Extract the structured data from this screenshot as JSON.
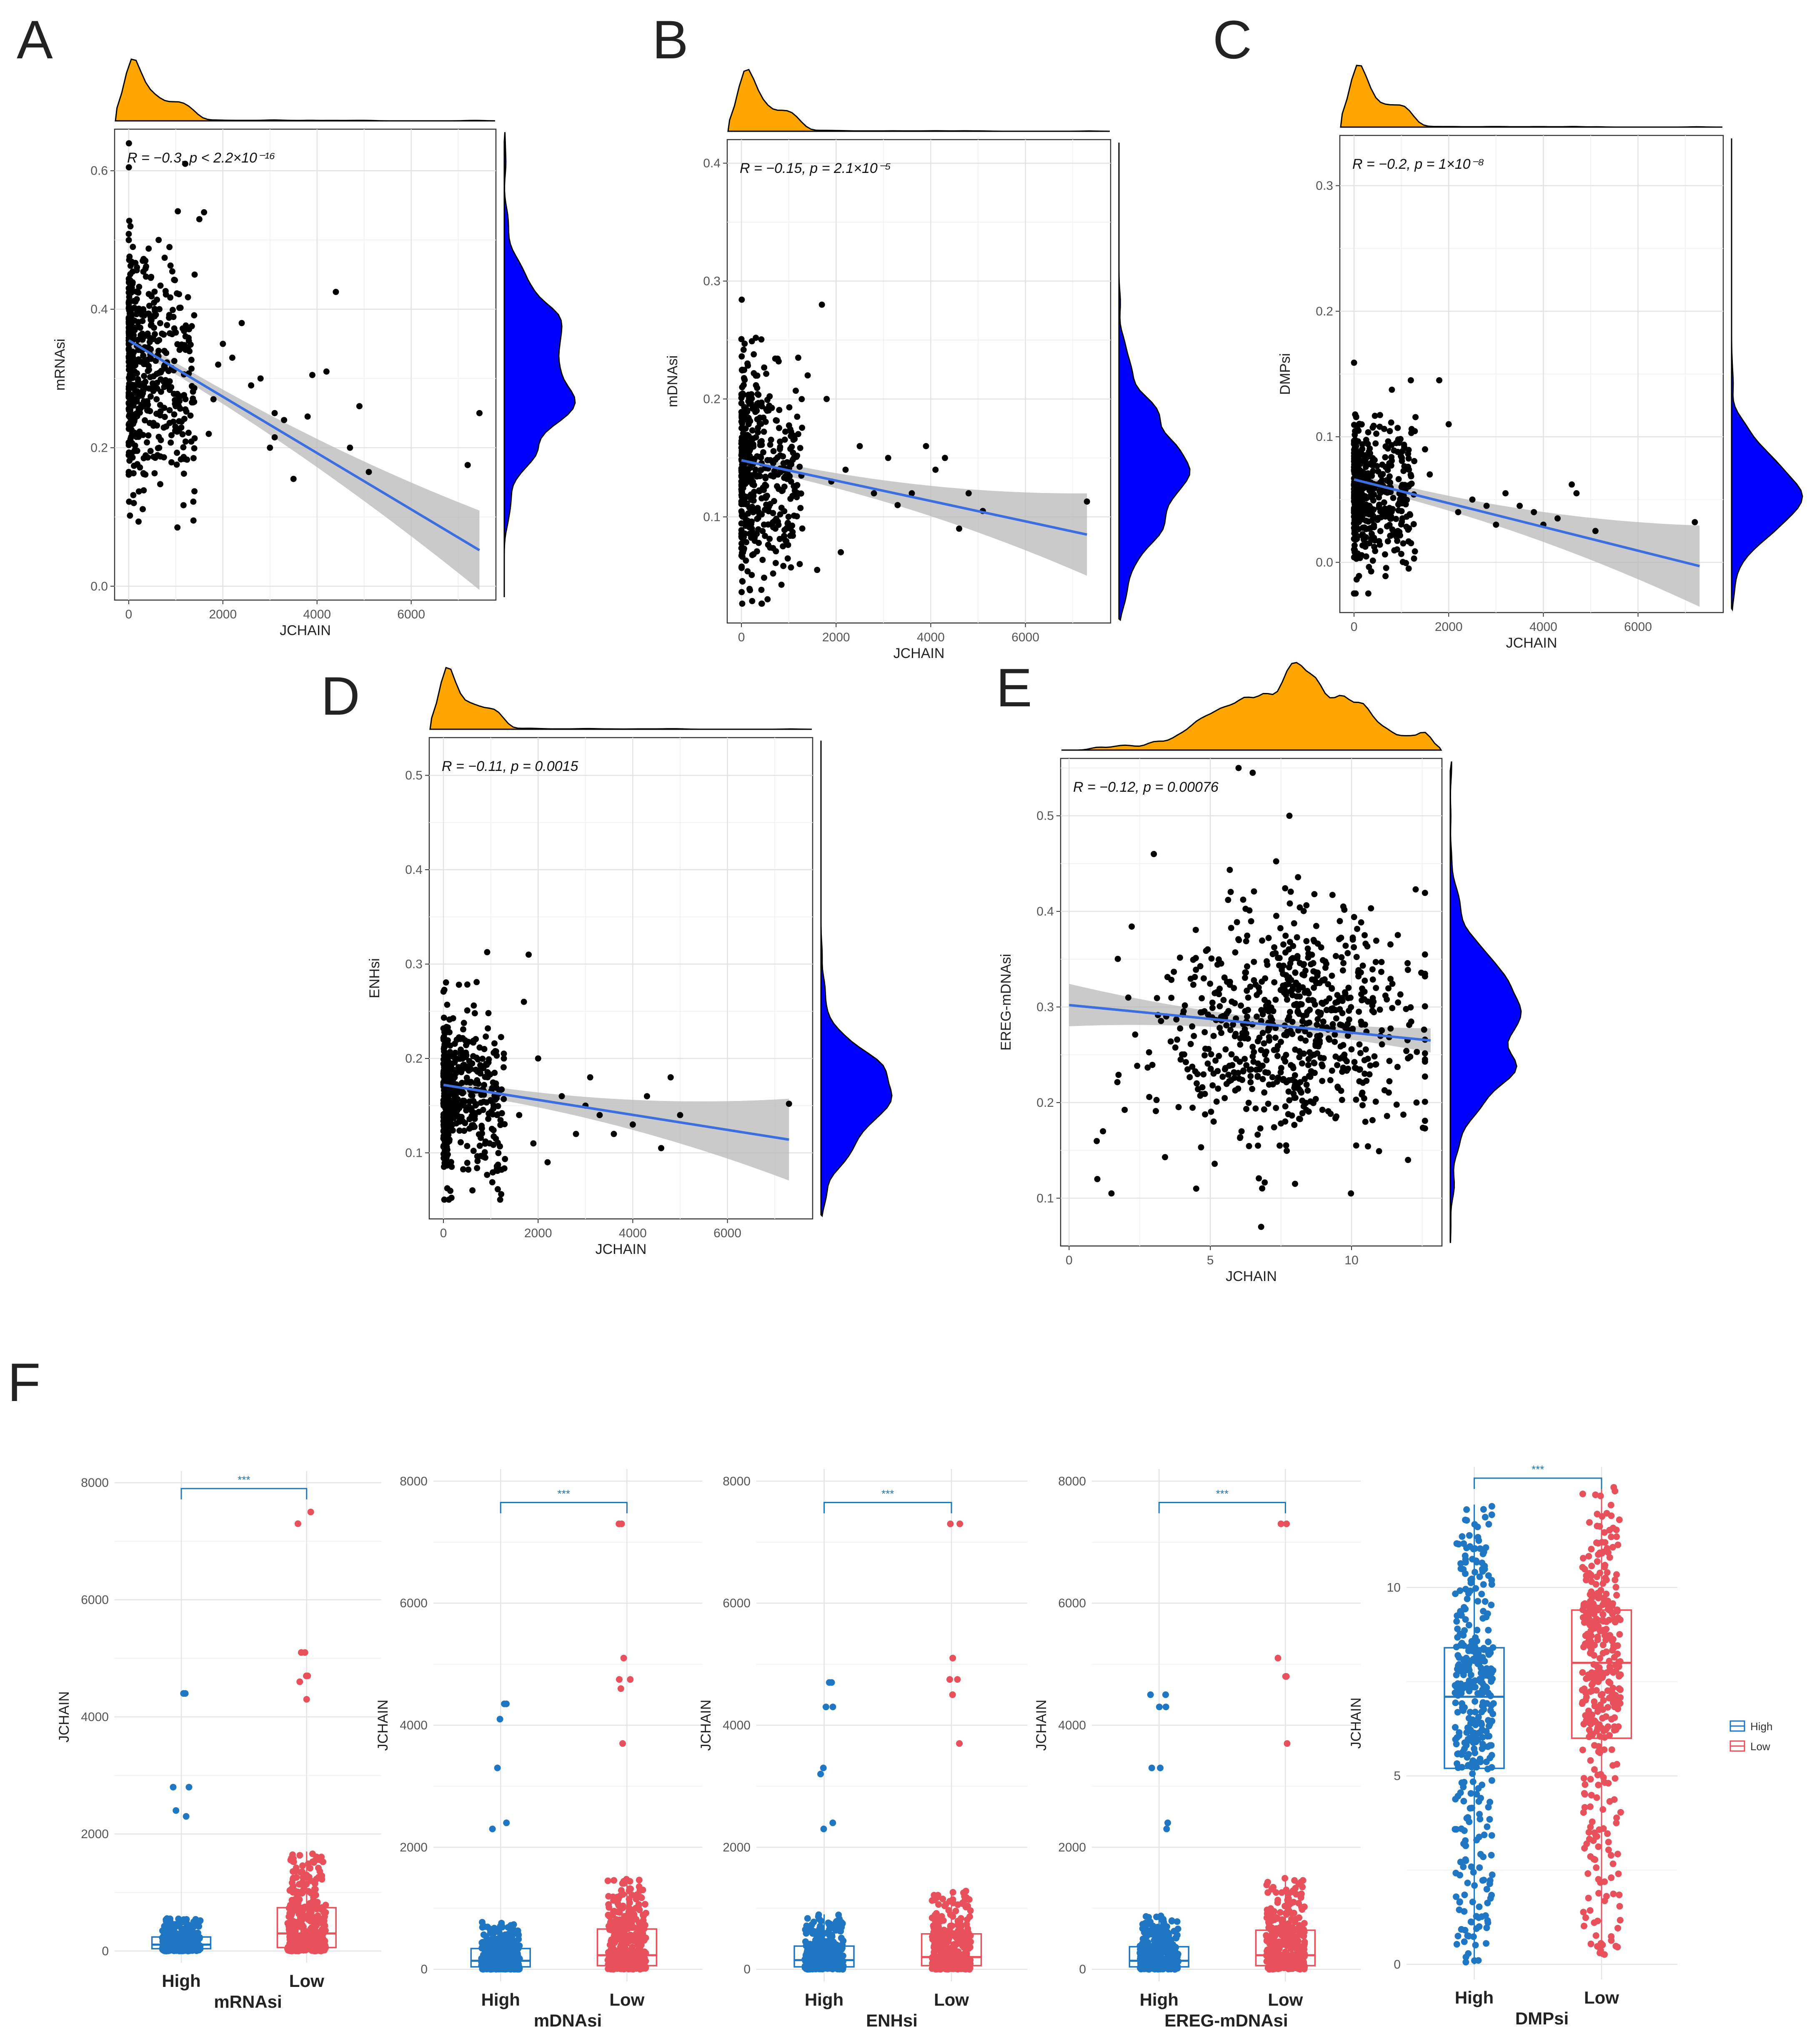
{
  "chart_data": [
    {
      "id": "A",
      "type": "scatter",
      "panel_letter": "A",
      "xlabel": "JCHAIN",
      "ylabel": "mRNAsi",
      "xlim": [
        -300,
        7800
      ],
      "ylim": [
        -0.02,
        0.66
      ],
      "xticks": [
        0,
        2000,
        4000,
        6000
      ],
      "yticks": [
        0.0,
        0.2,
        0.4,
        0.6
      ],
      "xtick_labels": [
        "0",
        "2000",
        "4000",
        "6000"
      ],
      "ytick_labels": [
        "0.0",
        "0.2",
        "0.4",
        "0.6"
      ],
      "annotation": "R = −0.3, p < 2.2×10⁻¹⁶",
      "fit": {
        "x": [
          0,
          7450
        ],
        "y": [
          0.355,
          0.052
        ]
      },
      "cloud": {
        "n": 520,
        "xmax": 1400,
        "ymean": 0.33,
        "ysd": 0.09,
        "slope": -4e-05,
        "seed": 11
      },
      "points_x": [
        4400,
        4200,
        3900,
        3800,
        3500,
        3300,
        3100,
        3100,
        3000,
        2800,
        2600,
        2400,
        2200,
        2000,
        1900,
        1800,
        1700,
        1600,
        4700,
        4900,
        5100,
        7200,
        7450,
        1500,
        1200,
        1400
      ],
      "points_y": [
        0.425,
        0.31,
        0.305,
        0.245,
        0.155,
        0.24,
        0.215,
        0.25,
        0.2,
        0.3,
        0.29,
        0.38,
        0.33,
        0.35,
        0.32,
        0.27,
        0.22,
        0.54,
        0.2,
        0.26,
        0.165,
        0.175,
        0.25,
        0.53,
        0.61,
        0.45
      ]
    },
    {
      "id": "B",
      "type": "scatter",
      "panel_letter": "B",
      "xlabel": "JCHAIN",
      "ylabel": "mDNAsi",
      "xlim": [
        -300,
        7800
      ],
      "ylim": [
        0.01,
        0.42
      ],
      "xticks": [
        0,
        2000,
        4000,
        6000
      ],
      "yticks": [
        0.1,
        0.2,
        0.3,
        0.4
      ],
      "xtick_labels": [
        "0",
        "2000",
        "4000",
        "6000"
      ],
      "ytick_labels": [
        "0.1",
        "0.2",
        "0.3",
        "0.4"
      ],
      "annotation": "R = −0.15, p = 2.1×10⁻⁵",
      "fit": {
        "x": [
          0,
          7300
        ],
        "y": [
          0.148,
          0.085
        ]
      },
      "cloud": {
        "n": 460,
        "xmax": 1300,
        "ymean": 0.14,
        "ysd": 0.045,
        "slope": -1e-05,
        "seed": 22
      },
      "points_x": [
        4300,
        4100,
        3900,
        3600,
        3300,
        3100,
        2800,
        2500,
        2200,
        1900,
        1700,
        1600,
        4600,
        4800,
        5100,
        7300,
        1200,
        1400,
        1800,
        2100
      ],
      "points_y": [
        0.15,
        0.14,
        0.16,
        0.12,
        0.11,
        0.15,
        0.12,
        0.16,
        0.14,
        0.13,
        0.28,
        0.055,
        0.09,
        0.12,
        0.105,
        0.113,
        0.235,
        0.22,
        0.2,
        0.07
      ]
    },
    {
      "id": "C",
      "type": "scatter",
      "panel_letter": "C",
      "xlabel": "JCHAIN",
      "ylabel": "DMPsi",
      "xlim": [
        -300,
        7800
      ],
      "ylim": [
        -0.04,
        0.34
      ],
      "xticks": [
        0,
        2000,
        4000,
        6000
      ],
      "yticks": [
        0.0,
        0.1,
        0.2,
        0.3
      ],
      "xtick_labels": [
        "0",
        "2000",
        "4000",
        "6000"
      ],
      "ytick_labels": [
        "0.0",
        "0.1",
        "0.2",
        "0.3"
      ],
      "annotation": "R = −0.2, p = 1×10⁻⁸",
      "fit": {
        "x": [
          0,
          7300
        ],
        "y": [
          0.066,
          -0.003
        ]
      },
      "cloud": {
        "n": 460,
        "xmax": 1300,
        "ymean": 0.058,
        "ysd": 0.028,
        "slope": -6e-06,
        "seed": 33
      },
      "points_x": [
        4700,
        4600,
        4300,
        4000,
        3800,
        3500,
        3200,
        3000,
        2800,
        2500,
        2200,
        2000,
        1800,
        1600,
        7200,
        5100,
        1200,
        1500
      ],
      "points_y": [
        0.055,
        0.062,
        0.035,
        0.03,
        0.04,
        0.045,
        0.055,
        0.03,
        0.045,
        0.05,
        0.04,
        0.11,
        0.145,
        0.07,
        0.032,
        0.025,
        0.145,
        0.09
      ]
    },
    {
      "id": "D",
      "type": "scatter",
      "panel_letter": "D",
      "xlabel": "JCHAIN",
      "ylabel": "ENHsi",
      "xlim": [
        -300,
        7800
      ],
      "ylim": [
        0.03,
        0.54
      ],
      "xticks": [
        0,
        2000,
        4000,
        6000
      ],
      "yticks": [
        0.1,
        0.2,
        0.3,
        0.4,
        0.5
      ],
      "xtick_labels": [
        "0",
        "2000",
        "4000",
        "6000"
      ],
      "ytick_labels": [
        "0.1",
        "0.2",
        "0.3",
        "0.4",
        "0.5"
      ],
      "annotation": "R = −0.11, p = 0.0015",
      "fit": {
        "x": [
          0,
          7300
        ],
        "y": [
          0.172,
          0.114
        ]
      },
      "cloud": {
        "n": 460,
        "xmax": 1300,
        "ymean": 0.165,
        "ysd": 0.045,
        "slope": -8e-06,
        "seed": 44
      },
      "points_x": [
        4800,
        4600,
        4300,
        4000,
        3600,
        3300,
        3100,
        3000,
        2800,
        2500,
        2200,
        2000,
        1800,
        1600,
        7300,
        5000,
        1700,
        1900
      ],
      "points_y": [
        0.18,
        0.105,
        0.16,
        0.13,
        0.12,
        0.14,
        0.18,
        0.15,
        0.12,
        0.16,
        0.09,
        0.2,
        0.31,
        0.14,
        0.152,
        0.14,
        0.26,
        0.11
      ]
    },
    {
      "id": "E",
      "type": "scatter",
      "panel_letter": "E",
      "xlabel": "JCHAIN",
      "ylabel": "EREG-mDNAsi",
      "xlim": [
        -0.3,
        13.2
      ],
      "ylim": [
        0.05,
        0.56
      ],
      "xticks": [
        0,
        5,
        10
      ],
      "yticks": [
        0.1,
        0.2,
        0.3,
        0.4,
        0.5
      ],
      "xtick_labels": [
        "0",
        "5",
        "10"
      ],
      "ytick_labels": [
        "0.1",
        "0.2",
        "0.3",
        "0.4",
        "0.5"
      ],
      "annotation": "R = −0.12, p = 0.00076",
      "fit": {
        "x": [
          0,
          12.8
        ],
        "y": [
          0.302,
          0.265
        ]
      },
      "cloud": {
        "n": 720,
        "xmean": 7.8,
        "xsd": 2.3,
        "ymean": 0.28,
        "ysd": 0.06,
        "seed": 55
      },
      "points_x": [
        6.0,
        6.5,
        7.8,
        3.0,
        1.5,
        1.0,
        1.2,
        4.5,
        8.0,
        12.0,
        12.3,
        6.8
      ],
      "points_y": [
        0.55,
        0.545,
        0.5,
        0.46,
        0.105,
        0.12,
        0.17,
        0.11,
        0.115,
        0.14,
        0.2,
        0.07
      ]
    },
    {
      "id": "F",
      "type": "box",
      "panel_letter": "F",
      "legend": [
        {
          "label": "High",
          "color": "#1f77c4"
        },
        {
          "label": "Low",
          "color": "#e8505b"
        }
      ],
      "significance": "***",
      "ylabel": "JCHAIN",
      "groups": [
        "High",
        "Low"
      ],
      "panels": [
        {
          "xname": "mRNAsi",
          "ylim": [
            -200,
            8200
          ],
          "yticks": [
            0,
            2000,
            4000,
            6000,
            8000
          ],
          "ytick_labels": [
            "0",
            "2000",
            "4000",
            "6000",
            "8000"
          ],
          "boxes": [
            {
              "q1": 40,
              "median": 110,
              "q3": 240,
              "whislo": 0,
              "whishi": 560
            },
            {
              "q1": 60,
              "median": 300,
              "q3": 740,
              "whislo": 0,
              "whishi": 1700
            }
          ],
          "outliers": [
            [
              4400,
              4400,
              2800,
              2800,
              2400,
              2300
            ],
            [
              7500,
              7300,
              5100,
              5100,
              4700,
              4700,
              4600,
              4300
            ]
          ],
          "sig_y": 7900
        },
        {
          "xname": "mDNAsi",
          "ylim": [
            -200,
            8200
          ],
          "yticks": [
            0,
            2000,
            4000,
            6000,
            8000
          ],
          "ytick_labels": [
            "0",
            "2000",
            "4000",
            "6000",
            "8000"
          ],
          "boxes": [
            {
              "q1": 40,
              "median": 140,
              "q3": 340,
              "whislo": 0,
              "whishi": 780
            },
            {
              "q1": 60,
              "median": 230,
              "q3": 660,
              "whislo": 0,
              "whishi": 1500
            }
          ],
          "outliers": [
            [
              4350,
              4350,
              4100,
              3300,
              2400,
              2300
            ],
            [
              7300,
              7300,
              5100,
              4750,
              4750,
              4600,
              3700
            ]
          ],
          "sig_y": 7650
        },
        {
          "xname": "ENHsi",
          "ylim": [
            -200,
            8200
          ],
          "yticks": [
            0,
            2000,
            4000,
            6000,
            8000
          ],
          "ytick_labels": [
            "0",
            "2000",
            "4000",
            "6000",
            "8000"
          ],
          "boxes": [
            {
              "q1": 40,
              "median": 150,
              "q3": 380,
              "whislo": 0,
              "whishi": 900
            },
            {
              "q1": 60,
              "median": 200,
              "q3": 580,
              "whislo": 0,
              "whishi": 1300
            }
          ],
          "outliers": [
            [
              4700,
              4700,
              4300,
              4300,
              3300,
              3200,
              2400,
              2300
            ],
            [
              7300,
              7300,
              5100,
              4750,
              4750,
              4500,
              3700
            ]
          ],
          "sig_y": 7650
        },
        {
          "xname": "EREG-mDNAsi",
          "ylim": [
            -200,
            8200
          ],
          "yticks": [
            0,
            2000,
            4000,
            6000,
            8000
          ],
          "ytick_labels": [
            "0",
            "2000",
            "4000",
            "6000",
            "8000"
          ],
          "boxes": [
            {
              "q1": 40,
              "median": 140,
              "q3": 370,
              "whislo": 0,
              "whishi": 880
            },
            {
              "q1": 60,
              "median": 230,
              "q3": 640,
              "whislo": 0,
              "whishi": 1500
            }
          ],
          "outliers": [
            [
              4500,
              4500,
              4300,
              4300,
              3300,
              3300,
              2400,
              2300
            ],
            [
              7300,
              7300,
              5100,
              4800,
              4800,
              3700
            ]
          ],
          "sig_y": 7650
        },
        {
          "xname": "DMPsi",
          "ylim": [
            -0.4,
            13.2
          ],
          "yticks": [
            0,
            5,
            10
          ],
          "ytick_labels": [
            "0",
            "5",
            "10"
          ],
          "boxes": [
            {
              "q1": 5.2,
              "median": 7.1,
              "q3": 8.4,
              "whislo": 0.0,
              "whishi": 12.2
            },
            {
              "q1": 6.0,
              "median": 8.0,
              "q3": 9.4,
              "whislo": 0.2,
              "whishi": 12.7
            }
          ],
          "outliers": [
            [],
            []
          ],
          "sig_y": 12.9
        }
      ]
    }
  ]
}
